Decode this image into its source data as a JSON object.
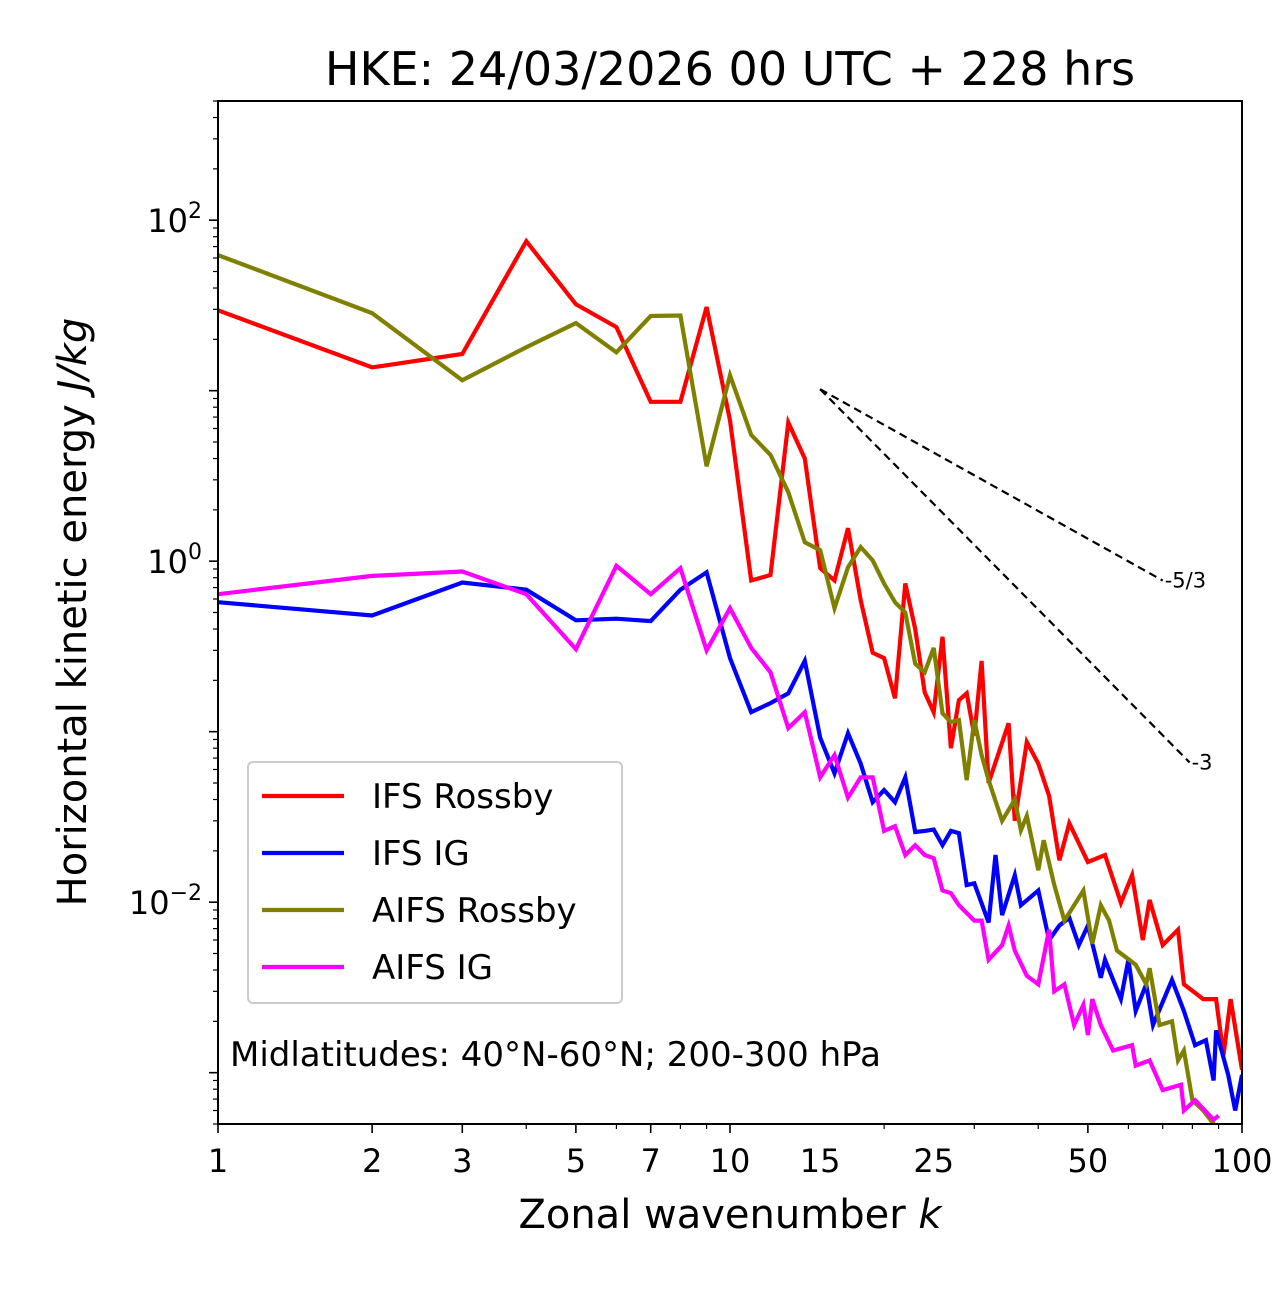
{
  "chart_data": {
    "type": "line",
    "title": "HKE: 24/03/2026 00 UTC + 228 hrs",
    "xlabel": "Zonal wavenumber",
    "xlabel_var": "k",
    "ylabel": "Horizontal kinetic energy",
    "ylabel_unit": "J/kg",
    "xscale": "log",
    "yscale": "log",
    "xlim": [
      1,
      100
    ],
    "ylim": [
      0.0005,
      500
    ],
    "grid": false,
    "xticks": [
      1,
      2,
      3,
      5,
      7,
      10,
      15,
      25,
      50,
      100
    ],
    "xtick_labels": [
      "1",
      "2",
      "3",
      "5",
      "7",
      "10",
      "15",
      "25",
      "50",
      "100"
    ],
    "yticks": [
      0.01,
      1,
      100
    ],
    "ytick_labels": [
      {
        "base": "10",
        "exp": "−2"
      },
      {
        "base": "10",
        "exp": "0"
      },
      {
        "base": "10",
        "exp": "2"
      }
    ],
    "legend_position": "lower-left",
    "annotation": "Midlatitudes: 40°N-60°N; 200-300 hPa",
    "series": [
      {
        "name": "IFS Rossby",
        "color": "#ff0000",
        "points": [
          [
            1,
            29.6
          ],
          [
            2,
            13.7
          ],
          [
            3,
            16.4
          ],
          [
            4,
            75.3
          ],
          [
            5,
            32.1
          ],
          [
            6,
            23.6
          ],
          [
            7,
            8.6
          ],
          [
            8,
            8.6
          ],
          [
            9,
            30.9
          ],
          [
            10,
            6.7
          ],
          [
            11,
            0.77
          ],
          [
            12,
            0.83
          ],
          [
            13,
            6.5
          ],
          [
            14,
            4.0
          ],
          [
            15,
            0.91
          ],
          [
            16,
            0.77
          ],
          [
            17,
            1.56
          ],
          [
            18,
            0.59
          ],
          [
            19,
            0.29
          ],
          [
            20,
            0.27
          ],
          [
            21,
            0.157
          ],
          [
            22,
            0.74
          ],
          [
            23,
            0.4
          ],
          [
            24,
            0.17
          ],
          [
            25,
            0.13
          ],
          [
            26,
            0.36
          ],
          [
            27,
            0.08
          ],
          [
            28,
            0.153
          ],
          [
            29,
            0.168
          ],
          [
            30,
            0.095
          ],
          [
            31,
            0.26
          ],
          [
            32,
            0.05
          ],
          [
            35,
            0.112
          ],
          [
            36,
            0.03
          ],
          [
            38,
            0.087
          ],
          [
            40,
            0.065
          ],
          [
            42,
            0.042
          ],
          [
            44,
            0.0176
          ],
          [
            46,
            0.029
          ],
          [
            50,
            0.0172
          ],
          [
            54,
            0.0189
          ],
          [
            58,
            0.0099
          ],
          [
            61,
            0.0144
          ],
          [
            64,
            0.006
          ],
          [
            66,
            0.0103
          ],
          [
            70,
            0.0056
          ],
          [
            75,
            0.0069
          ],
          [
            77,
            0.0033
          ],
          [
            84,
            0.0027
          ],
          [
            89,
            0.0027
          ],
          [
            92,
            0.00127
          ],
          [
            95,
            0.0027
          ],
          [
            100,
            0.00104
          ]
        ]
      },
      {
        "name": "IFS IG",
        "color": "#0000ff",
        "points": [
          [
            1,
            0.575
          ],
          [
            2,
            0.48
          ],
          [
            3,
            0.75
          ],
          [
            4,
            0.68
          ],
          [
            5,
            0.45
          ],
          [
            6,
            0.46
          ],
          [
            7,
            0.445
          ],
          [
            8,
            0.68
          ],
          [
            9,
            0.86
          ],
          [
            10,
            0.27
          ],
          [
            11,
            0.13
          ],
          [
            12,
            0.147
          ],
          [
            13,
            0.168
          ],
          [
            14,
            0.26
          ],
          [
            15,
            0.092
          ],
          [
            16,
            0.057
          ],
          [
            17,
            0.098
          ],
          [
            18,
            0.065
          ],
          [
            19,
            0.0386
          ],
          [
            20,
            0.0454
          ],
          [
            21,
            0.0386
          ],
          [
            22,
            0.054
          ],
          [
            23,
            0.0258
          ],
          [
            24,
            0.0262
          ],
          [
            25,
            0.0267
          ],
          [
            26,
            0.0216
          ],
          [
            27,
            0.0262
          ],
          [
            28,
            0.0254
          ],
          [
            29,
            0.0126
          ],
          [
            30,
            0.0129
          ],
          [
            32,
            0.0076
          ],
          [
            33,
            0.0189
          ],
          [
            34,
            0.0084
          ],
          [
            36,
            0.0144
          ],
          [
            37,
            0.0096
          ],
          [
            40,
            0.0117
          ],
          [
            42,
            0.006
          ],
          [
            44,
            0.0073
          ],
          [
            46,
            0.0081
          ],
          [
            48,
            0.0056
          ],
          [
            50,
            0.0073
          ],
          [
            53,
            0.0036
          ],
          [
            54,
            0.0046
          ],
          [
            58,
            0.0027
          ],
          [
            60,
            0.0046
          ],
          [
            62,
            0.0023
          ],
          [
            65,
            0.0033
          ],
          [
            67,
            0.0019
          ],
          [
            73,
            0.0035
          ],
          [
            77,
            0.0023
          ],
          [
            81,
            0.00145
          ],
          [
            85,
            0.00155
          ],
          [
            88,
            0.0009
          ],
          [
            89,
            0.00177
          ],
          [
            94,
            0.00097
          ],
          [
            97,
            0.0006
          ],
          [
            100,
            0.00097
          ]
        ]
      },
      {
        "name": "AIFS Rossby",
        "color": "#808000",
        "points": [
          [
            1,
            62.4
          ],
          [
            2,
            28.5
          ],
          [
            3,
            11.5
          ],
          [
            4,
            18.0
          ],
          [
            5,
            24.9
          ],
          [
            6,
            16.8
          ],
          [
            7,
            27.4
          ],
          [
            8,
            27.6
          ],
          [
            9,
            3.6
          ],
          [
            10,
            12.3
          ],
          [
            11,
            5.5
          ],
          [
            12,
            4.2
          ],
          [
            13,
            2.54
          ],
          [
            14,
            1.29
          ],
          [
            15,
            1.16
          ],
          [
            16,
            0.53
          ],
          [
            17,
            0.92
          ],
          [
            18,
            1.21
          ],
          [
            19,
            1.01
          ],
          [
            20,
            0.74
          ],
          [
            21,
            0.575
          ],
          [
            22,
            0.5
          ],
          [
            23,
            0.25
          ],
          [
            24,
            0.223
          ],
          [
            25,
            0.31
          ],
          [
            26,
            0.128
          ],
          [
            27,
            0.114
          ],
          [
            28,
            0.117
          ],
          [
            29,
            0.052
          ],
          [
            30,
            0.117
          ],
          [
            31,
            0.073
          ],
          [
            32,
            0.052
          ],
          [
            34,
            0.03
          ],
          [
            36,
            0.04
          ],
          [
            37,
            0.0264
          ],
          [
            38,
            0.032
          ],
          [
            40,
            0.0154
          ],
          [
            41,
            0.0231
          ],
          [
            43,
            0.0126
          ],
          [
            45,
            0.0078
          ],
          [
            49,
            0.0117
          ],
          [
            51,
            0.0057
          ],
          [
            53,
            0.0096
          ],
          [
            55,
            0.0078
          ],
          [
            57,
            0.0052
          ],
          [
            62,
            0.0043
          ],
          [
            65,
            0.0033
          ],
          [
            66,
            0.0041
          ],
          [
            69,
            0.0019
          ],
          [
            73,
            0.002
          ],
          [
            75,
            0.00118
          ],
          [
            77,
            0.00135
          ],
          [
            80,
            0.00069
          ],
          [
            84,
            0.0006
          ],
          [
            90,
            0.00046
          ],
          [
            95,
            0.0004
          ]
        ]
      },
      {
        "name": "AIFS IG",
        "color": "#ff00ff",
        "points": [
          [
            1,
            0.64
          ],
          [
            2,
            0.82
          ],
          [
            3,
            0.87
          ],
          [
            4,
            0.64
          ],
          [
            5,
            0.305
          ],
          [
            6,
            0.94
          ],
          [
            7,
            0.64
          ],
          [
            8,
            0.91
          ],
          [
            9,
            0.3
          ],
          [
            10,
            0.53
          ],
          [
            11,
            0.31
          ],
          [
            12,
            0.223
          ],
          [
            13,
            0.105
          ],
          [
            14,
            0.13
          ],
          [
            15,
            0.054
          ],
          [
            16,
            0.073
          ],
          [
            17,
            0.041
          ],
          [
            18,
            0.054
          ],
          [
            19,
            0.054
          ],
          [
            20,
            0.0262
          ],
          [
            21,
            0.0279
          ],
          [
            22,
            0.0189
          ],
          [
            23,
            0.0216
          ],
          [
            24,
            0.0189
          ],
          [
            25,
            0.0181
          ],
          [
            26,
            0.0117
          ],
          [
            27,
            0.0113
          ],
          [
            28,
            0.0096
          ],
          [
            30,
            0.0078
          ],
          [
            31,
            0.0078
          ],
          [
            32,
            0.0046
          ],
          [
            34,
            0.0056
          ],
          [
            35,
            0.0073
          ],
          [
            36,
            0.0052
          ],
          [
            38,
            0.0037
          ],
          [
            40,
            0.0033
          ],
          [
            42,
            0.0069
          ],
          [
            43,
            0.003
          ],
          [
            45,
            0.0033
          ],
          [
            47,
            0.0019
          ],
          [
            49,
            0.0025
          ],
          [
            50,
            0.00166
          ],
          [
            51,
            0.0027
          ],
          [
            53,
            0.0019
          ],
          [
            56,
            0.00135
          ],
          [
            61,
            0.00145
          ],
          [
            62,
            0.0011
          ],
          [
            66,
            0.00118
          ],
          [
            70,
            0.00079
          ],
          [
            76,
            0.00085
          ],
          [
            77,
            0.0006
          ],
          [
            81,
            0.00069
          ],
          [
            88,
            0.00053
          ],
          [
            90,
            0.00056
          ]
        ]
      }
    ],
    "reference_lines": [
      {
        "label": "-5/3",
        "slope": -1.6667,
        "start": [
          15,
          10.2
        ],
        "end": [
          70,
          0.77
        ]
      },
      {
        "label": "-3",
        "slope": -3,
        "start": [
          15,
          10.2
        ],
        "end": [
          79,
          0.066
        ]
      }
    ]
  }
}
